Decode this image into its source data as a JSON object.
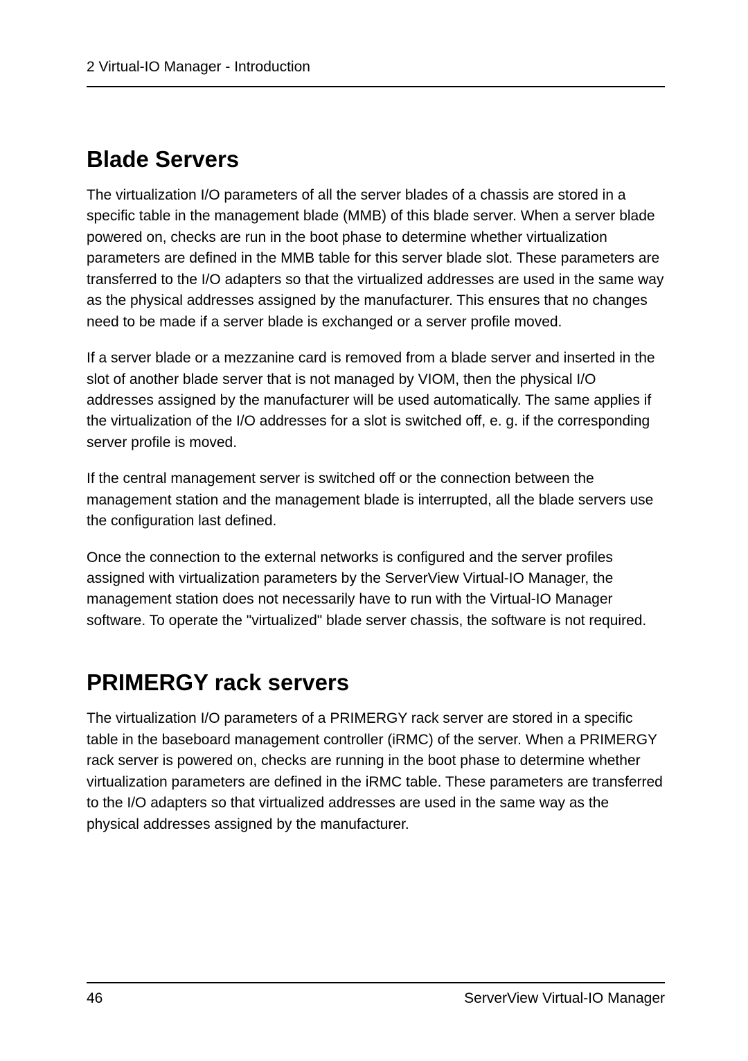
{
  "header": {
    "text": "2 Virtual-IO Manager - Introduction"
  },
  "sections": {
    "blade": {
      "title": "Blade Servers",
      "p1": "The virtualization I/O parameters of all the server blades of a chassis are stored in a specific table in the management blade (MMB) of this blade server. When a server blade powered on, checks are run in the boot phase to determine whether virtualization parameters are defined in the MMB table for this server blade slot. These parameters are transferred to the I/O adapters so that the virtualized addresses are used in the same way as the physical addresses assigned by the manufacturer. This ensures that no changes need to be made if a server blade is exchanged or a server profile moved.",
      "p2": "If a server blade or a mezzanine card is removed from a blade server and inserted in the slot of another blade server that is not managed by VIOM, then the physical I/O addresses assigned by the manufacturer will be used automatically. The same applies if the virtualization of the I/O addresses for a slot is switched off, e. g. if the corresponding server profile is moved.",
      "p3": "If the central management server is switched off or the connection between the management station and the management blade is interrupted, all the blade servers use the configuration last defined.",
      "p4": "Once the connection to the external networks is configured and the server profiles assigned with virtualization parameters by the ServerView Virtual-IO Manager, the management station does not necessarily have to run with the Virtual-IO Manager software. To operate the \"virtualized\" blade server chassis, the software is not required."
    },
    "primergy": {
      "title": "PRIMERGY rack servers",
      "p1": "The virtualization I/O parameters of a PRIMERGY rack server are stored in a specific table in the baseboard management controller (iRMC) of the server. When a PRIMERGY rack server is powered on, checks are running in the boot phase to determine whether virtualization parameters are defined in the iRMC table. These parameters are transferred to the I/O adapters so that virtualized addresses are used in the same way as the physical addresses assigned by the manufacturer."
    }
  },
  "footer": {
    "page_number": "46",
    "doc_title": "ServerView Virtual-IO Manager"
  }
}
